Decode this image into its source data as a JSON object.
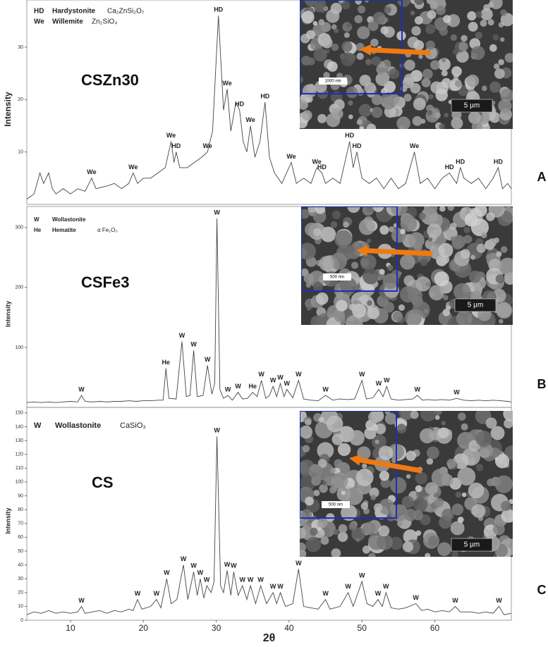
{
  "chart_data": [
    {
      "type": "line",
      "sample": "CSZn30",
      "panel": "A",
      "ylabel": "Intensity",
      "phases": [
        {
          "code": "HD",
          "name": "Hardystonite",
          "formula": "Ca₂ZnSi₂O₇"
        },
        {
          "code": "We",
          "name": "Willemite",
          "formula": "Zn₂SiO₄"
        }
      ],
      "xlim": [
        4,
        70.5
      ],
      "ylim": [
        0,
        39
      ],
      "yticks": [
        10,
        20,
        30
      ],
      "color": "#444444",
      "x": [
        4,
        5,
        5.8,
        6.3,
        7,
        7.5,
        8,
        9,
        10,
        11,
        12,
        12.9,
        13.5,
        15,
        16,
        17,
        18,
        18.6,
        19.2,
        20,
        21,
        22,
        23,
        23.8,
        24.2,
        24.5,
        25,
        26,
        27,
        28,
        28.8,
        29.5,
        30.3,
        31,
        31.5,
        32,
        32.7,
        33.2,
        33.7,
        34.2,
        34.7,
        35.3,
        36,
        36.7,
        37.3,
        38,
        39,
        40.3,
        41,
        42,
        43,
        43.8,
        44.5,
        45,
        46,
        47,
        48.3,
        48.8,
        49.3,
        50,
        51,
        52,
        53,
        54,
        55,
        56,
        57.2,
        58,
        59,
        60,
        61,
        62,
        63,
        63.5,
        64,
        65,
        66,
        67,
        68,
        68.7,
        69.3,
        70,
        70.5
      ],
      "values": [
        1,
        2,
        6,
        4,
        6,
        3,
        2,
        3,
        2,
        3,
        2.5,
        5,
        3,
        3.5,
        4,
        3,
        4,
        6,
        4,
        5,
        5,
        6,
        7,
        12,
        8,
        10,
        7,
        7,
        8,
        9,
        10,
        14,
        36,
        18,
        22,
        14,
        19.5,
        18,
        12,
        10,
        15,
        9,
        12,
        19.5,
        9,
        6,
        4,
        8,
        4,
        5,
        4,
        7,
        6,
        4,
        5,
        4,
        12,
        7,
        10,
        5,
        4,
        5,
        3,
        5,
        3,
        4,
        10,
        4,
        5,
        3,
        5,
        6,
        4,
        7,
        5,
        4,
        5,
        3,
        5,
        7,
        3,
        4,
        3
      ],
      "peak_labels": [
        {
          "label": "We",
          "x": 12.9
        },
        {
          "label": "We",
          "x": 18.6
        },
        {
          "label": "We",
          "x": 23.8
        },
        {
          "label": "HD",
          "x": 24.5
        },
        {
          "label": "We",
          "x": 28.8
        },
        {
          "label": "HD",
          "x": 30.3
        },
        {
          "label": "We",
          "x": 31.5
        },
        {
          "label": "HD",
          "x": 33.2
        },
        {
          "label": "We",
          "x": 34.7
        },
        {
          "label": "HD",
          "x": 36.7
        },
        {
          "label": "We",
          "x": 40.3
        },
        {
          "label": "We",
          "x": 43.8
        },
        {
          "label": "HD",
          "x": 44.5
        },
        {
          "label": "HD",
          "x": 48.3
        },
        {
          "label": "HD",
          "x": 49.3
        },
        {
          "label": "We",
          "x": 57.2
        },
        {
          "label": "HD",
          "x": 62
        },
        {
          "label": "HD",
          "x": 63.5
        },
        {
          "label": "HD",
          "x": 68.7
        }
      ],
      "inset": {
        "scale_label": "5 µm",
        "zoom_label": "1000 nm"
      }
    },
    {
      "type": "line",
      "sample": "CSFe3",
      "panel": "B",
      "ylabel": "Intensity",
      "phases": [
        {
          "code": "W",
          "name": "Wollastonite"
        },
        {
          "code": "He",
          "name": "Hematite",
          "formula": "α Fe₂O₃"
        }
      ],
      "xlim": [
        4,
        70.5
      ],
      "ylim": [
        0,
        335
      ],
      "yticks": [
        100,
        200,
        300
      ],
      "color": "#444444",
      "x": [
        4,
        5,
        6,
        7,
        8,
        9,
        10,
        11,
        11.5,
        12,
        13,
        14,
        15,
        16,
        17,
        18,
        19,
        20,
        21,
        22,
        22.7,
        23.1,
        23.5,
        24.5,
        25.3,
        25.9,
        26.4,
        26.9,
        27.4,
        28.2,
        28.8,
        29.4,
        29.8,
        30.1,
        30.5,
        31,
        31.6,
        32.2,
        33,
        33.6,
        34.3,
        35,
        35.6,
        36.2,
        36.8,
        37.3,
        37.8,
        38.3,
        38.8,
        39.3,
        39.7,
        40.5,
        41.3,
        42,
        43,
        44,
        45,
        46,
        47,
        48,
        49,
        50,
        50.6,
        51.5,
        52.3,
        52.9,
        53.4,
        54,
        55,
        56,
        57,
        57.6,
        58.3,
        59,
        60,
        61,
        62,
        63,
        64,
        65,
        66,
        67,
        68,
        69,
        70,
        70.5
      ],
      "values": [
        8,
        9,
        8,
        9,
        8,
        9,
        10,
        9,
        20,
        10,
        9,
        10,
        9,
        10,
        10,
        11,
        10,
        11,
        11,
        12,
        12,
        65,
        15,
        14,
        110,
        18,
        20,
        95,
        18,
        20,
        70,
        22,
        40,
        315,
        30,
        15,
        20,
        12,
        25,
        14,
        15,
        25,
        18,
        45,
        15,
        20,
        35,
        18,
        40,
        18,
        30,
        16,
        45,
        14,
        12,
        11,
        20,
        12,
        14,
        13,
        14,
        45,
        14,
        16,
        30,
        18,
        35,
        14,
        12,
        13,
        14,
        20,
        12,
        13,
        12,
        13,
        12,
        15,
        12,
        11,
        12,
        11,
        12,
        11,
        10,
        9
      ],
      "peak_labels": [
        {
          "label": "W",
          "x": 11.5
        },
        {
          "label": "He",
          "x": 23.1
        },
        {
          "label": "W",
          "x": 25.3
        },
        {
          "label": "W",
          "x": 26.9
        },
        {
          "label": "W",
          "x": 28.8
        },
        {
          "label": "W",
          "x": 30.1
        },
        {
          "label": "W",
          "x": 31.6
        },
        {
          "label": "W",
          "x": 33
        },
        {
          "label": "He",
          "x": 35
        },
        {
          "label": "W",
          "x": 36.2
        },
        {
          "label": "W",
          "x": 37.8
        },
        {
          "label": "W",
          "x": 38.8
        },
        {
          "label": "W",
          "x": 39.7
        },
        {
          "label": "W",
          "x": 41.3
        },
        {
          "label": "W",
          "x": 45
        },
        {
          "label": "W",
          "x": 50
        },
        {
          "label": "W",
          "x": 52.3
        },
        {
          "label": "W",
          "x": 53.4
        },
        {
          "label": "W",
          "x": 57.6
        },
        {
          "label": "W",
          "x": 63
        }
      ],
      "inset": {
        "scale_label": "5 µm",
        "zoom_label": "500 nm"
      }
    },
    {
      "type": "line",
      "sample": "CS",
      "panel": "C",
      "ylabel": "Intensity",
      "xlabel": "2θ",
      "phases": [
        {
          "code": "W",
          "name": "Wollastonite",
          "formula": "CaSiO₃"
        }
      ],
      "xlim": [
        4,
        70.5
      ],
      "ylim": [
        0,
        154
      ],
      "yticks": [
        0,
        10,
        20,
        30,
        40,
        50,
        60,
        70,
        80,
        90,
        100,
        110,
        120,
        130,
        140,
        150
      ],
      "xticks": [
        10,
        20,
        30,
        40,
        50,
        60
      ],
      "color": "#444444",
      "x": [
        4,
        5,
        6,
        7,
        8,
        9,
        10,
        11,
        11.5,
        12,
        13,
        14,
        15,
        16,
        17,
        18,
        18.6,
        19.2,
        19.8,
        21,
        21.8,
        22.4,
        23.2,
        23.8,
        24.6,
        25.5,
        26.1,
        26.9,
        27.4,
        27.8,
        28.3,
        28.7,
        29.3,
        29.7,
        30.1,
        30.6,
        31,
        31.5,
        32,
        32.4,
        33,
        33.6,
        34.2,
        34.7,
        35.4,
        36.1,
        36.9,
        37.8,
        38.3,
        38.8,
        39.5,
        40.5,
        41.3,
        42,
        43,
        44,
        45,
        45.6,
        47,
        48.1,
        48.8,
        50,
        50.7,
        51.5,
        52.2,
        52.8,
        53.3,
        54,
        55,
        56,
        57.4,
        58.2,
        59,
        60,
        61,
        62,
        62.8,
        63.5,
        65,
        66,
        67,
        68,
        68.8,
        69.5,
        70.5
      ],
      "values": [
        4,
        6,
        5,
        7,
        5,
        6,
        5,
        6,
        10,
        5,
        6,
        7,
        5,
        7,
        6,
        8,
        7,
        15,
        8,
        10,
        15,
        9,
        30,
        12,
        15,
        40,
        15,
        35,
        18,
        30,
        16,
        25,
        20,
        28,
        133,
        25,
        20,
        36,
        18,
        35,
        18,
        25,
        15,
        25,
        12,
        25,
        12,
        20,
        12,
        20,
        10,
        12,
        37,
        10,
        9,
        8,
        15,
        8,
        10,
        20,
        10,
        28,
        12,
        10,
        15,
        10,
        20,
        9,
        8,
        9,
        12,
        7,
        8,
        6,
        7,
        6,
        10,
        6,
        6,
        5,
        6,
        5,
        10,
        4,
        5
      ],
      "peak_labels": [
        {
          "label": "W",
          "x": 11.5
        },
        {
          "label": "W",
          "x": 19.2
        },
        {
          "label": "W",
          "x": 21.8
        },
        {
          "label": "W",
          "x": 23.2
        },
        {
          "label": "W",
          "x": 25.5
        },
        {
          "label": "W",
          "x": 26.9
        },
        {
          "label": "W",
          "x": 27.8
        },
        {
          "label": "W",
          "x": 28.7
        },
        {
          "label": "W",
          "x": 30.1
        },
        {
          "label": "W",
          "x": 31.5
        },
        {
          "label": "W",
          "x": 32.4
        },
        {
          "label": "W",
          "x": 33.6
        },
        {
          "label": "W",
          "x": 34.7
        },
        {
          "label": "W",
          "x": 36.1
        },
        {
          "label": "W",
          "x": 37.8
        },
        {
          "label": "W",
          "x": 38.8
        },
        {
          "label": "W",
          "x": 41.3
        },
        {
          "label": "W",
          "x": 45
        },
        {
          "label": "W",
          "x": 48.1
        },
        {
          "label": "W",
          "x": 50
        },
        {
          "label": "W",
          "x": 52.2
        },
        {
          "label": "W",
          "x": 53.3
        },
        {
          "label": "W",
          "x": 57.4
        },
        {
          "label": "W",
          "x": 62.8
        },
        {
          "label": "W",
          "x": 68.8
        }
      ],
      "inset": {
        "scale_label": "5 µm",
        "zoom_label": "500 nm"
      }
    }
  ]
}
